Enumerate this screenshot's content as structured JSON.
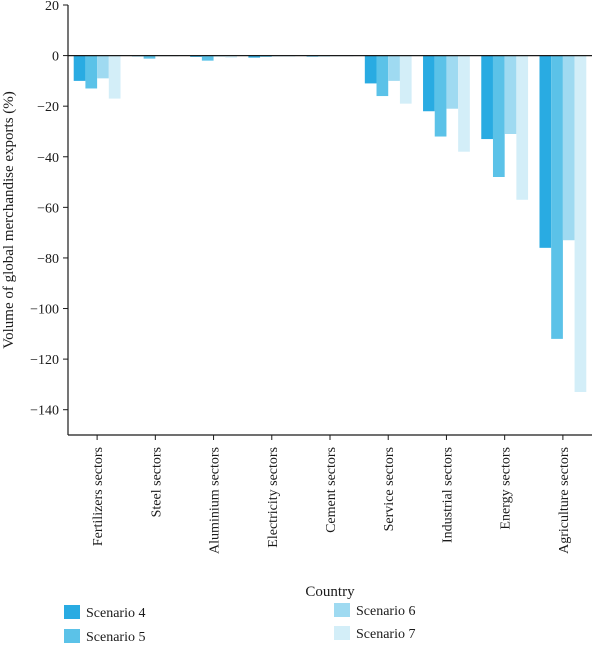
{
  "chart_data": {
    "type": "bar",
    "xlabel": "Country",
    "ylabel": "Volume of global merchandise exports (%)",
    "ylim": [
      -150,
      20
    ],
    "yticks": [
      20,
      0,
      -20,
      -40,
      -60,
      -80,
      -100,
      -120,
      -140
    ],
    "grid": false,
    "legend_position": "bottom",
    "categories": [
      "Fertilizers sectors",
      "Steel sectors",
      "Aluminium sectors",
      "Electricity sectors",
      "Cement sectors",
      "Service sectors",
      "Industrial sectors",
      "Energy sectors",
      "Agriculture sectors"
    ],
    "series": [
      {
        "name": "Scenario 4",
        "color": "#29ABE2",
        "values": [
          -10,
          -0.3,
          -0.5,
          -0.8,
          -0.4,
          -11,
          -22,
          -33,
          -76
        ]
      },
      {
        "name": "Scenario 5",
        "color": "#5BC2E8",
        "values": [
          -13,
          -1.2,
          -2,
          -0.5,
          -0.3,
          -16,
          -32,
          -48,
          -112
        ]
      },
      {
        "name": "Scenario 6",
        "color": "#9FDAF1",
        "values": [
          -9,
          -0.2,
          -0.4,
          -0.3,
          -0.2,
          -10,
          -21,
          -31,
          -73
        ]
      },
      {
        "name": "Scenario 7",
        "color": "#D3EEF8",
        "values": [
          -17,
          -0.3,
          -0.8,
          -0.4,
          -0.3,
          -19,
          -38,
          -57,
          -133
        ]
      }
    ]
  }
}
